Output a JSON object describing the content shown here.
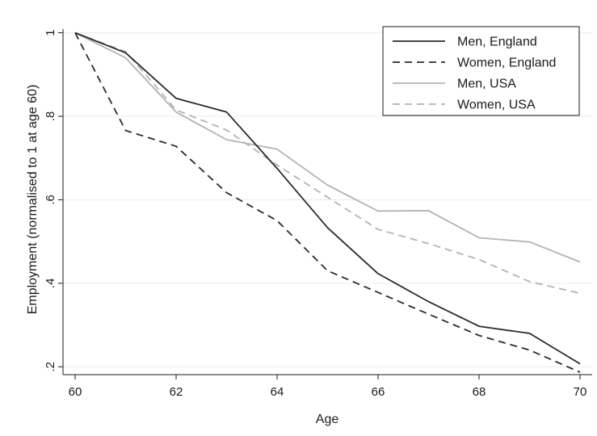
{
  "chart_data": {
    "type": "line",
    "title": "",
    "xlabel": "Age",
    "ylabel": "Employment (normalised to 1 at age 60)",
    "xlim": [
      60,
      70
    ],
    "ylim": [
      0.185,
      1.005
    ],
    "xticks": [
      60,
      62,
      64,
      66,
      68,
      70
    ],
    "xtick_labels": [
      "60",
      "62",
      "64",
      "66",
      "68",
      "70"
    ],
    "yticks": [
      0.2,
      0.4,
      0.6,
      0.8,
      1.0
    ],
    "ytick_labels": [
      ".2",
      ".4",
      ".6",
      ".8",
      "1"
    ],
    "grid": "horizontal",
    "legend_position": "top-right",
    "x": [
      60,
      61,
      62,
      63,
      64,
      65,
      66,
      67,
      68,
      69,
      70
    ],
    "series": [
      {
        "name": "Men, England",
        "color": "#2b2b2b",
        "dash": "solid",
        "values": [
          1.0,
          0.952,
          0.843,
          0.81,
          0.675,
          0.533,
          0.423,
          0.356,
          0.297,
          0.28,
          0.207
        ]
      },
      {
        "name": "Women, England",
        "color": "#2b2b2b",
        "dash": "dashed",
        "values": [
          1.0,
          0.766,
          0.728,
          0.617,
          0.55,
          0.43,
          0.378,
          0.326,
          0.275,
          0.24,
          0.187
        ]
      },
      {
        "name": "Men, USA",
        "color": "#b3b3b3",
        "dash": "solid",
        "values": [
          1.0,
          0.94,
          0.81,
          0.744,
          0.721,
          0.635,
          0.573,
          0.574,
          0.509,
          0.499,
          0.451
        ]
      },
      {
        "name": "Women, USA",
        "color": "#b3b3b3",
        "dash": "dashed",
        "values": [
          1.0,
          0.955,
          0.815,
          0.767,
          0.683,
          0.606,
          0.529,
          0.495,
          0.457,
          0.404,
          0.376
        ]
      }
    ]
  }
}
